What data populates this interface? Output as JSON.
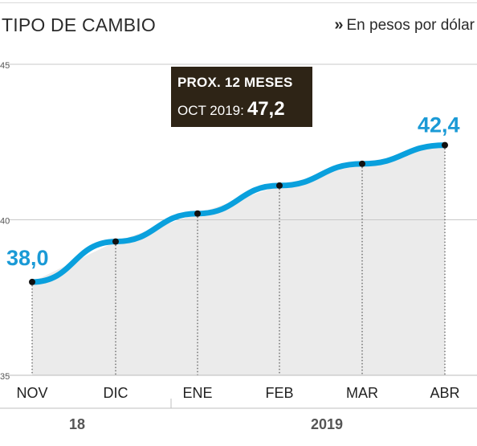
{
  "header": {
    "title": "TIPO DE CAMBIO",
    "subtitle_marker": "»",
    "subtitle": "En pesos por dólar"
  },
  "forecast": {
    "label": "PROX. 12 MESES",
    "period": "OCT 2019:",
    "value": "47,2"
  },
  "chart_data": {
    "type": "area",
    "categories": [
      "NOV",
      "DIC",
      "ENE",
      "FEB",
      "MAR",
      "ABR"
    ],
    "values": [
      38.0,
      39.3,
      40.2,
      41.1,
      41.8,
      42.4
    ],
    "ylim": [
      35,
      45
    ],
    "yticks": [
      "35",
      "40",
      "45"
    ],
    "point_labels": [
      {
        "index": 0,
        "text": "38,0"
      },
      {
        "index": 5,
        "text": "42,4"
      }
    ],
    "year_labels": [
      {
        "text": "18",
        "from": 0,
        "to": 1
      },
      {
        "text": "2019",
        "from": 2,
        "to": 5
      }
    ],
    "grid": true,
    "colors": {
      "line": "#0aa0dd",
      "fill": "#ebebeb",
      "marker": "#111111",
      "label": "#1a9ad6",
      "grid": "#c8c8c8"
    }
  }
}
